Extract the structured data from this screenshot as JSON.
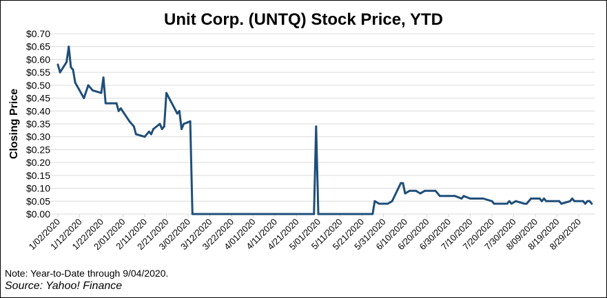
{
  "chart_data": {
    "type": "line",
    "title": "Unit Corp. (UNTQ) Stock Price, YTD",
    "xlabel": "",
    "ylabel": "Closing Price",
    "ylim": [
      0,
      0.7
    ],
    "yticks": [
      "$0.00",
      "$0.05",
      "$0.10",
      "$0.15",
      "$0.20",
      "$0.25",
      "$0.30",
      "$0.35",
      "$0.40",
      "$0.45",
      "$0.50",
      "$0.55",
      "$0.60",
      "$0.65",
      "$0.70"
    ],
    "xticks": [
      "1/02/2020",
      "1/12/2020",
      "1/22/2020",
      "2/01/2020",
      "2/11/2020",
      "2/21/2020",
      "3/02/2020",
      "3/12/2020",
      "3/22/2020",
      "4/01/2020",
      "4/11/2020",
      "4/21/2020",
      "5/01/2020",
      "5/11/2020",
      "5/21/2020",
      "5/31/2020",
      "6/10/2020",
      "6/20/2020",
      "6/30/2020",
      "7/10/2020",
      "7/20/2020",
      "7/30/2020",
      "8/09/2020",
      "8/19/2020",
      "8/29/2020"
    ],
    "grid": true,
    "line_color": "#1f4e79",
    "series": [
      {
        "x": [
          "1/02",
          "1/03",
          "1/06",
          "1/07",
          "1/08",
          "1/09",
          "1/10",
          "1/14",
          "1/16",
          "1/18",
          "1/22",
          "1/23",
          "1/24",
          "1/29",
          "1/30",
          "1/31",
          "2/04",
          "2/06",
          "2/07",
          "2/11",
          "2/13",
          "2/14",
          "2/15",
          "2/18",
          "2/19",
          "2/20",
          "2/21",
          "2/26",
          "2/27",
          "2/28",
          "2/29",
          "3/03",
          "3/04",
          "4/29",
          "4/30",
          "5/01",
          "5/26",
          "5/27",
          "5/29",
          "6/02",
          "6/04",
          "6/08",
          "6/09",
          "6/10",
          "6/12",
          "6/15",
          "6/17",
          "6/19",
          "6/24",
          "6/26",
          "7/03",
          "7/06",
          "7/07",
          "7/10",
          "7/16",
          "7/20",
          "7/21",
          "7/27",
          "7/28",
          "7/29",
          "7/31",
          "8/04",
          "8/05",
          "8/07",
          "8/11",
          "8/12",
          "8/13",
          "8/14",
          "8/20",
          "8/21",
          "8/25",
          "8/26",
          "8/27",
          "8/31",
          "9/01",
          "9/02",
          "9/03",
          "9/04"
        ],
        "y": [
          0.58,
          0.55,
          0.59,
          0.65,
          0.57,
          0.56,
          0.51,
          0.45,
          0.5,
          0.48,
          0.47,
          0.53,
          0.43,
          0.43,
          0.4,
          0.41,
          0.36,
          0.34,
          0.31,
          0.3,
          0.32,
          0.31,
          0.33,
          0.35,
          0.33,
          0.34,
          0.47,
          0.39,
          0.4,
          0.33,
          0.35,
          0.36,
          0.0,
          0.0,
          0.34,
          0.0,
          0.0,
          0.05,
          0.04,
          0.04,
          0.05,
          0.12,
          0.12,
          0.08,
          0.09,
          0.09,
          0.08,
          0.09,
          0.09,
          0.07,
          0.07,
          0.06,
          0.07,
          0.06,
          0.06,
          0.05,
          0.04,
          0.04,
          0.05,
          0.04,
          0.05,
          0.04,
          0.04,
          0.06,
          0.06,
          0.05,
          0.06,
          0.05,
          0.05,
          0.04,
          0.05,
          0.06,
          0.05,
          0.05,
          0.04,
          0.05,
          0.05,
          0.04
        ]
      }
    ]
  },
  "note": "Note: Year-to-Date through 9/04/2020.",
  "source": "Source: Yahoo! Finance"
}
